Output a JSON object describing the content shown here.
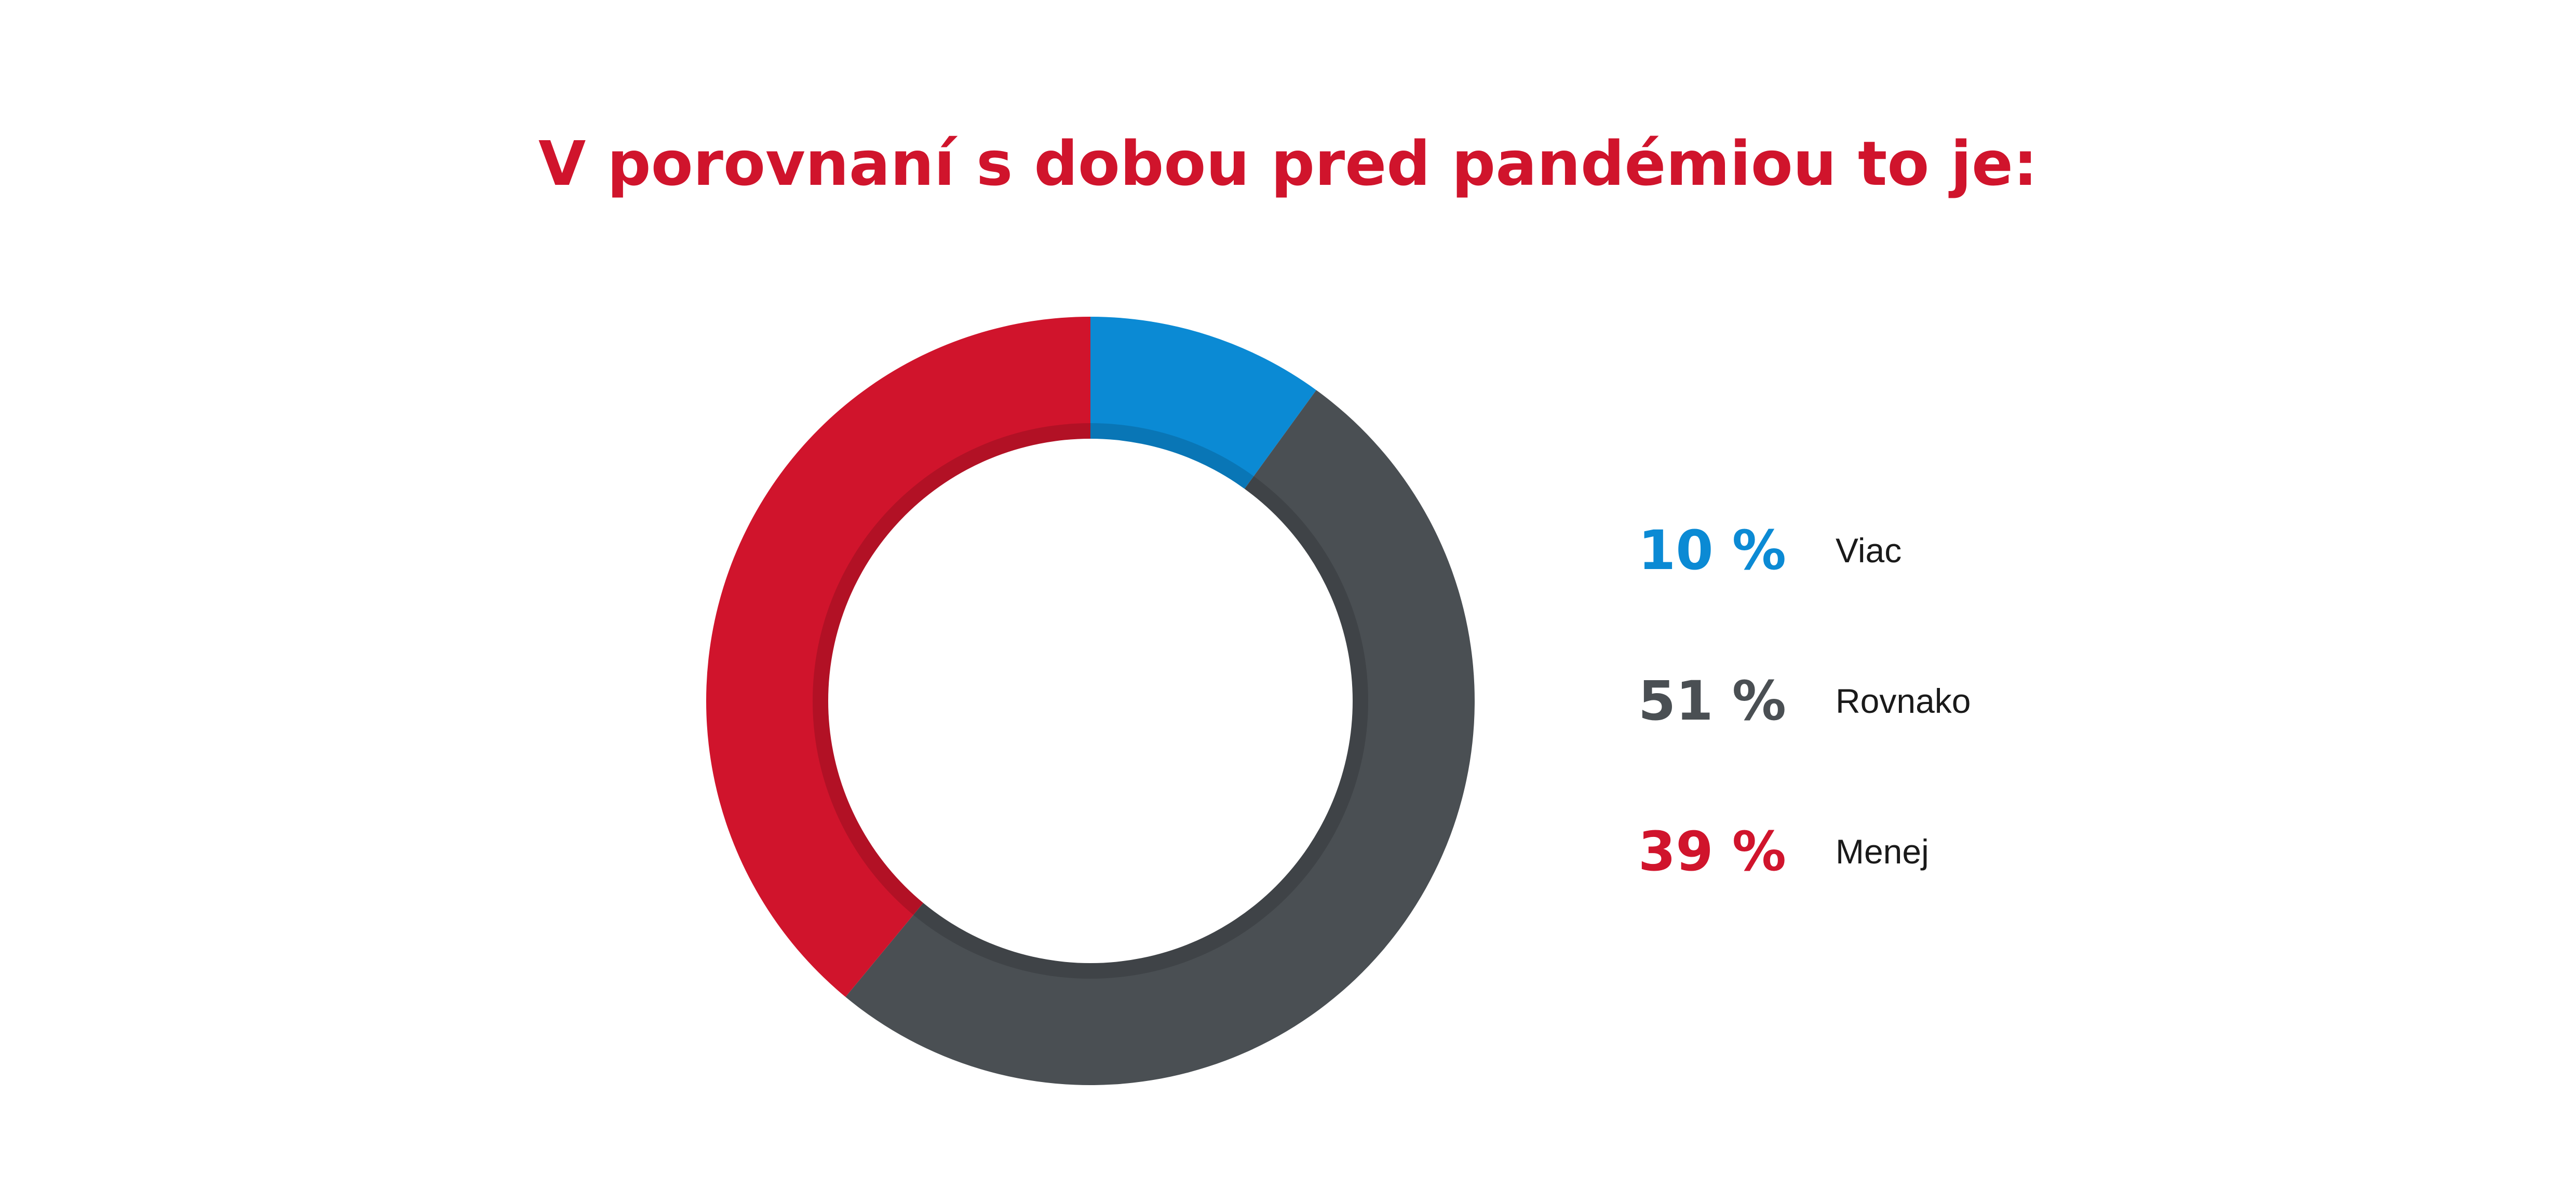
{
  "chart_data": {
    "type": "pie",
    "variant": "donut",
    "title": "V porovnaní s dobou pred pandémiou to je:",
    "slices": [
      {
        "label": "Viac",
        "value": 10,
        "display": "10 %",
        "color": "#0b8ad4"
      },
      {
        "label": "Rovnako",
        "value": 51,
        "display": "51 %",
        "color": "#4a4f53"
      },
      {
        "label": "Menej",
        "value": 39,
        "display": "39 %",
        "color": "#d0142c"
      }
    ],
    "start_angle": "top",
    "direction": "clockwise",
    "legend": "right"
  },
  "colors": {
    "title": "#d0142c",
    "background": "#ffffff",
    "label_text": "#1a1a1a"
  }
}
